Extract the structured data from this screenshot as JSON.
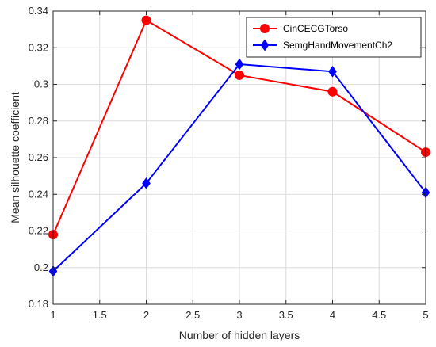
{
  "chart_data": {
    "type": "line",
    "xlabel": "Number of hidden layers",
    "ylabel": "Mean silhouette coefficient",
    "xlim": [
      1,
      5
    ],
    "ylim": [
      0.18,
      0.34
    ],
    "x_ticks": [
      "1",
      "1.5",
      "2",
      "2.5",
      "3",
      "3.5",
      "4",
      "4.5",
      "5"
    ],
    "y_ticks": [
      "0.18",
      "0.2",
      "0.22",
      "0.24",
      "0.26",
      "0.28",
      "0.3",
      "0.32",
      "0.34"
    ],
    "grid": true,
    "legend_position": "top-right",
    "series": [
      {
        "name": "CinCECGTorso",
        "color": "#ff0000",
        "marker": "circle",
        "x": [
          1,
          2,
          3,
          4,
          5
        ],
        "values": [
          0.218,
          0.335,
          0.305,
          0.296,
          0.263
        ]
      },
      {
        "name": "SemgHandMovementCh2",
        "color": "#0000ff",
        "marker": "diamond",
        "x": [
          1,
          2,
          3,
          4,
          5
        ],
        "values": [
          0.198,
          0.246,
          0.311,
          0.307,
          0.241
        ]
      }
    ]
  }
}
